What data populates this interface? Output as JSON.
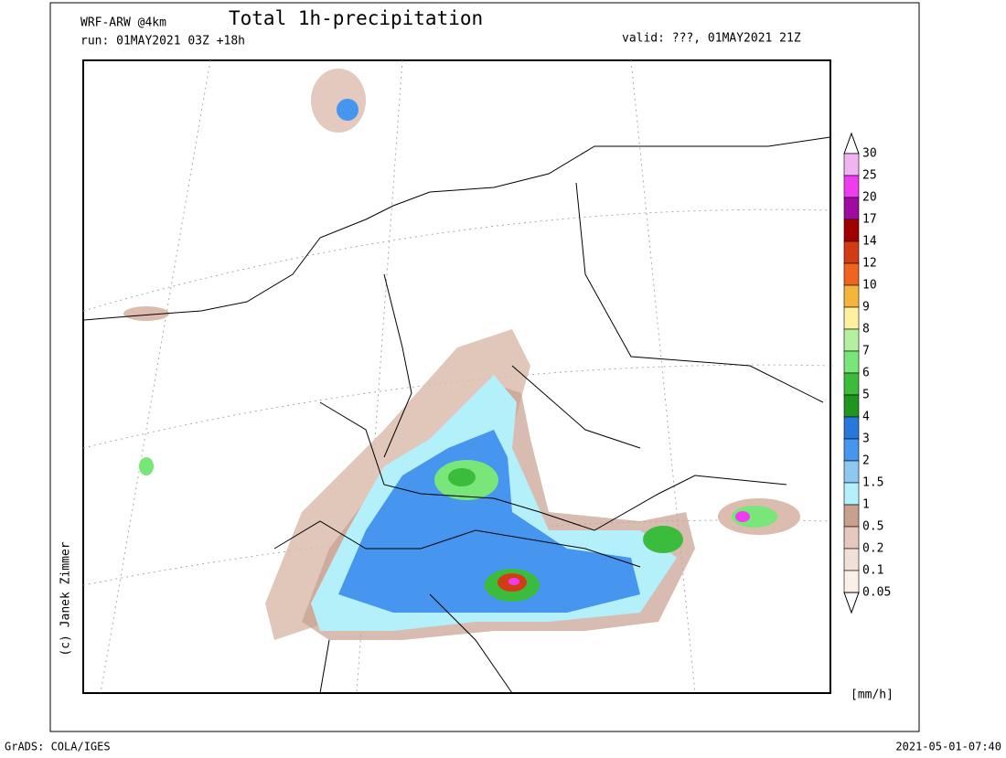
{
  "header": {
    "model": "WRF-ARW @4km",
    "title": "Total 1h-precipitation",
    "run": "run: 01MAY2021 03Z +18h",
    "valid": "valid: ???, 01MAY2021 21Z"
  },
  "credit": "(c) Janek Zimmer",
  "colorbar": {
    "unit": "[mm/h]",
    "levels": [
      30,
      25,
      20,
      17,
      14,
      12,
      10,
      9,
      8,
      7,
      6,
      5,
      4,
      3,
      2,
      1.5,
      1,
      0.5,
      0.2,
      0.1,
      0.05
    ],
    "colors": [
      "#f0b4f0",
      "#f03cf0",
      "#a00aa0",
      "#a00000",
      "#d23c14",
      "#f0641e",
      "#f5b43c",
      "#fff0a0",
      "#b4f0a0",
      "#78e678",
      "#3cbc3c",
      "#1e961e",
      "#2878dc",
      "#4696f0",
      "#8cc8f0",
      "#b4f0fa",
      "#c8a090",
      "#e6c8bc",
      "#f0e0d8",
      "#faf0e8"
    ]
  },
  "footer": {
    "left": "GrADS: COLA/IGES",
    "right": "2021-05-01-07:40"
  }
}
